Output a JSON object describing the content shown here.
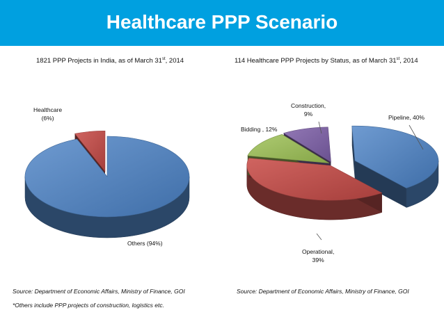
{
  "banner": {
    "title": "Healthcare PPP Scenario"
  },
  "colors": {
    "banner": "#00a0e0",
    "blue": "#4f81bd",
    "red": "#c0504d",
    "green": "#9bbb59",
    "purple": "#8064a2"
  },
  "chart_data": [
    {
      "type": "pie",
      "title_main": "1821 PPP Projects in India, as of March 31",
      "title_sup": "st",
      "title_tail": ", 2014",
      "categories": [
        "Healthcare",
        "Others"
      ],
      "values": [
        6,
        94
      ],
      "labels": {
        "healthcare_name": "Healthcare",
        "healthcare_pct": "(6%)",
        "others": "Others (94%)"
      },
      "source": "Source: Department of Economic Affairs, Ministry of Finance, GOI",
      "note": "*Others include PPP projects of  construction, logistics etc."
    },
    {
      "type": "pie",
      "title_main": "114 Healthcare PPP Projects by Status, as of March 31",
      "title_sup": "st",
      "title_tail": ", 2014",
      "categories": [
        "Pipeline",
        "Operational",
        "Bidding",
        "Construction"
      ],
      "values": [
        40,
        39,
        12,
        9
      ],
      "labels": {
        "pipeline": "Pipeline, 40%",
        "operational_name": "Operational,",
        "operational_pct": "39%",
        "bidding": "Bidding , 12%",
        "construction_name": "Construction,",
        "construction_pct": "9%"
      },
      "source": "Source: Department of Economic Affairs, Ministry of Finance, GOI"
    }
  ]
}
